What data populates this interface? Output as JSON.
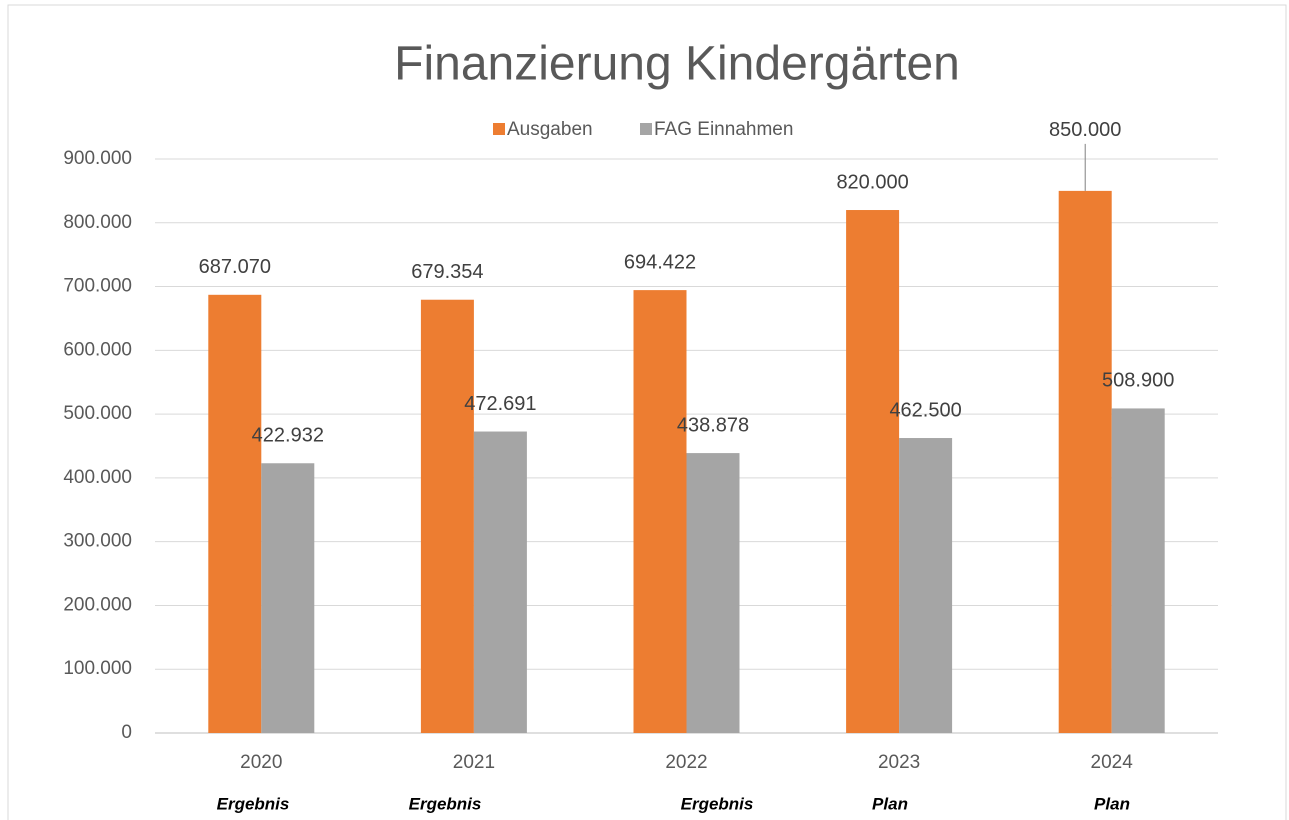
{
  "chart_data": {
    "type": "bar",
    "title": "Finanzierung  Kindergärten",
    "categories": [
      "2020",
      "2021",
      "2022",
      "2023",
      "2024"
    ],
    "sublabels": [
      "Ergebnis",
      "Ergebnis",
      "Ergebnis",
      "Plan",
      "Plan"
    ],
    "series": [
      {
        "name": "Ausgaben",
        "color": "#ed7d31",
        "values": [
          687070,
          679354,
          694422,
          820000,
          850000
        ],
        "value_labels": [
          "687.070",
          "679.354",
          "694.422",
          "820.000",
          "850.000"
        ]
      },
      {
        "name": "FAG Einnahmen",
        "color": "#a5a5a5",
        "values": [
          422932,
          472691,
          438878,
          462500,
          508900
        ],
        "value_labels": [
          "422.932",
          "472.691",
          "438.878",
          "462.500",
          "508.900"
        ]
      }
    ],
    "ylim": [
      0,
      900000
    ],
    "yticks": [
      0,
      {
        "value": 100000,
        "label": "100.000"
      },
      {
        "value": 200000,
        "label": "200.000"
      },
      {
        "value": 300000,
        "label": "300.000"
      },
      {
        "value": 400000,
        "label": "400.000"
      },
      {
        "value": 500000,
        "label": "500.000"
      },
      {
        "value": 600000,
        "label": "600.000"
      },
      {
        "value": 700000,
        "label": "700.000"
      },
      {
        "value": 800000,
        "label": "800.000"
      },
      {
        "value": 900000,
        "label": "900.000"
      }
    ],
    "grid": true,
    "legend": "top"
  }
}
